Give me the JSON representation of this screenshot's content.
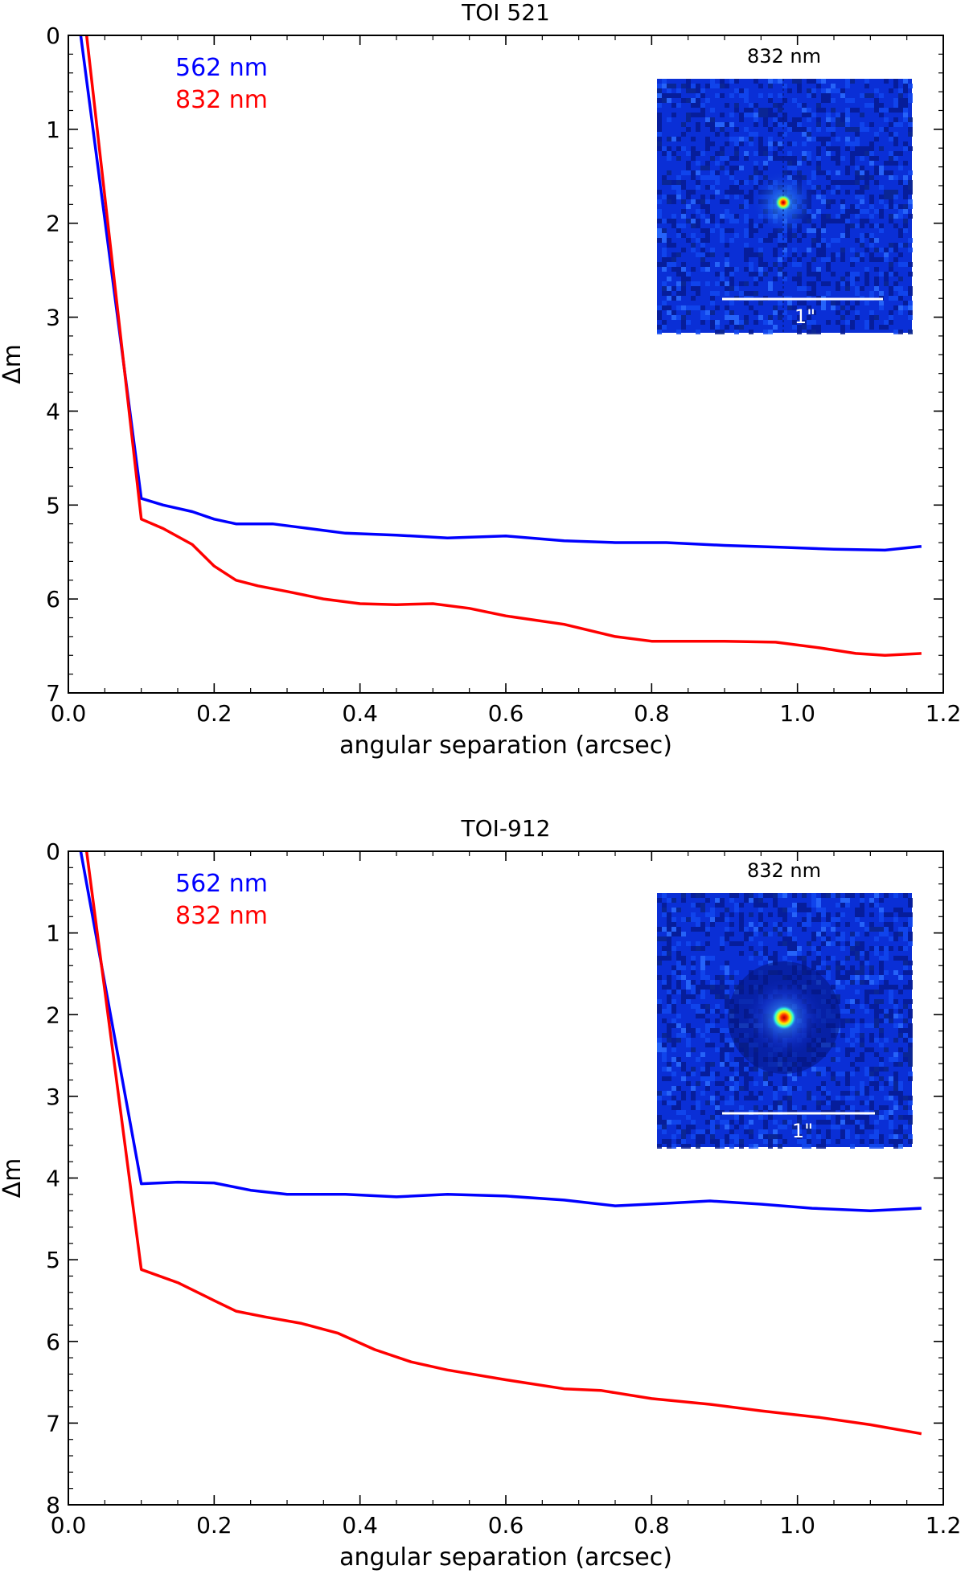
{
  "chart_data": [
    {
      "type": "line",
      "title": "TOI 521",
      "xlabel": "angular separation (arcsec)",
      "ylabel": "Δm",
      "xlim": [
        0.0,
        1.2
      ],
      "ylim": [
        7,
        0
      ],
      "y_inverted": true,
      "x_ticks": [
        "0.0",
        "0.2",
        "0.4",
        "0.6",
        "0.8",
        "1.0",
        "1.2"
      ],
      "y_ticks": [
        "0",
        "1",
        "2",
        "3",
        "4",
        "5",
        "6",
        "7"
      ],
      "legend_position": "top-left",
      "series": [
        {
          "name": "562 nm",
          "color": "#0000ff",
          "x": [
            0.017,
            0.1,
            0.13,
            0.17,
            0.2,
            0.23,
            0.28,
            0.32,
            0.38,
            0.45,
            0.52,
            0.6,
            0.68,
            0.75,
            0.82,
            0.9,
            0.98,
            1.05,
            1.12,
            1.17
          ],
          "y": [
            0.0,
            4.93,
            5.0,
            5.07,
            5.15,
            5.2,
            5.2,
            5.24,
            5.3,
            5.32,
            5.35,
            5.33,
            5.38,
            5.4,
            5.4,
            5.43,
            5.45,
            5.47,
            5.48,
            5.44
          ]
        },
        {
          "name": "832 nm",
          "color": "#ff0000",
          "x": [
            0.025,
            0.1,
            0.13,
            0.17,
            0.2,
            0.23,
            0.26,
            0.3,
            0.35,
            0.4,
            0.45,
            0.5,
            0.55,
            0.6,
            0.68,
            0.75,
            0.8,
            0.9,
            0.97,
            1.03,
            1.08,
            1.12,
            1.17
          ],
          "y": [
            0.0,
            5.15,
            5.25,
            5.42,
            5.65,
            5.8,
            5.86,
            5.92,
            6.0,
            6.05,
            6.06,
            6.05,
            6.1,
            6.18,
            6.27,
            6.4,
            6.45,
            6.45,
            6.46,
            6.52,
            6.58,
            6.6,
            6.58
          ]
        }
      ],
      "inset": {
        "label": "832 nm",
        "scale_label": "1\""
      }
    },
    {
      "type": "line",
      "title": "TOI-912",
      "xlabel": "angular separation (arcsec)",
      "ylabel": "Δm",
      "xlim": [
        0.0,
        1.2
      ],
      "ylim": [
        8,
        0
      ],
      "y_inverted": true,
      "x_ticks": [
        "0.0",
        "0.2",
        "0.4",
        "0.6",
        "0.8",
        "1.0",
        "1.2"
      ],
      "y_ticks": [
        "0",
        "1",
        "2",
        "3",
        "4",
        "5",
        "6",
        "7",
        "8"
      ],
      "legend_position": "top-left",
      "series": [
        {
          "name": "562 nm",
          "color": "#0000ff",
          "x": [
            0.017,
            0.1,
            0.15,
            0.2,
            0.25,
            0.3,
            0.38,
            0.45,
            0.52,
            0.6,
            0.68,
            0.75,
            0.82,
            0.88,
            0.95,
            1.02,
            1.1,
            1.17
          ],
          "y": [
            0.0,
            4.07,
            4.05,
            4.06,
            4.15,
            4.2,
            4.2,
            4.23,
            4.2,
            4.22,
            4.27,
            4.34,
            4.31,
            4.28,
            4.32,
            4.37,
            4.4,
            4.37
          ]
        },
        {
          "name": "832 nm",
          "color": "#ff0000",
          "x": [
            0.025,
            0.1,
            0.15,
            0.2,
            0.23,
            0.27,
            0.32,
            0.37,
            0.42,
            0.47,
            0.52,
            0.6,
            0.68,
            0.73,
            0.8,
            0.88,
            0.95,
            1.03,
            1.1,
            1.17
          ],
          "y": [
            0.0,
            5.12,
            5.28,
            5.5,
            5.63,
            5.7,
            5.78,
            5.9,
            6.1,
            6.25,
            6.35,
            6.47,
            6.58,
            6.6,
            6.7,
            6.77,
            6.85,
            6.93,
            7.02,
            7.13
          ]
        }
      ],
      "inset": {
        "label": "832 nm",
        "scale_label": "1\""
      }
    }
  ]
}
